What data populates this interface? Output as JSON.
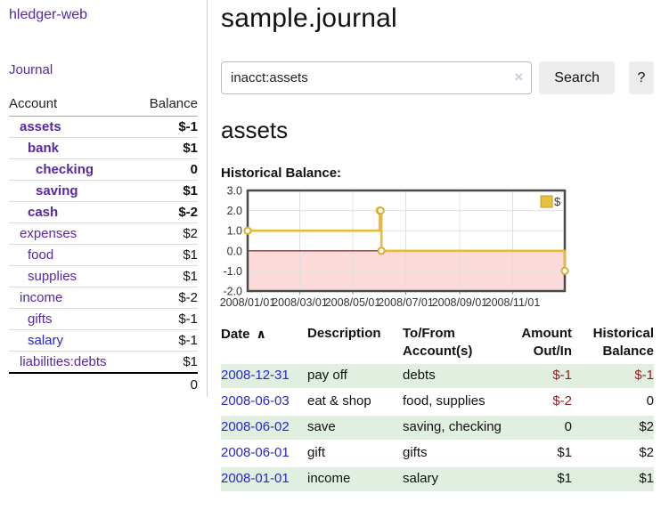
{
  "app": {
    "brand": "hledger-web",
    "nav_journal": "Journal"
  },
  "sidebar": {
    "accounts_table": {
      "col_account": "Account",
      "col_balance": "Balance",
      "rows": [
        {
          "name": "assets",
          "balance": "$-1",
          "level": 1,
          "matched": true,
          "balance_style": "neg-strong",
          "link_color": "purple"
        },
        {
          "name": "bank",
          "balance": "$1",
          "level": 2,
          "matched": true,
          "balance_style": "pos",
          "link_color": "purple"
        },
        {
          "name": "checking",
          "balance": "0",
          "level": 3,
          "matched": true,
          "balance_style": "pos",
          "link_color": "purple"
        },
        {
          "name": "saving",
          "balance": "$1",
          "level": 3,
          "matched": true,
          "balance_style": "pos",
          "link_color": "purple"
        },
        {
          "name": "cash",
          "balance": "$-2",
          "level": 2,
          "matched": true,
          "balance_style": "neg-strong",
          "link_color": "purple"
        },
        {
          "name": "expenses",
          "balance": "$2",
          "level": 1,
          "matched": false,
          "balance_style": "pos",
          "link_color": "purple"
        },
        {
          "name": "food",
          "balance": "$1",
          "level": 2,
          "matched": false,
          "balance_style": "pos",
          "link_color": "purple"
        },
        {
          "name": "supplies",
          "balance": "$1",
          "level": 2,
          "matched": false,
          "balance_style": "pos",
          "link_color": "purple"
        },
        {
          "name": "income",
          "balance": "$-2",
          "level": 1,
          "matched": false,
          "balance_style": "neg-muted",
          "link_color": "purple"
        },
        {
          "name": "gifts",
          "balance": "$-1",
          "level": 2,
          "matched": false,
          "balance_style": "neg-muted",
          "link_color": "purple"
        },
        {
          "name": "salary",
          "balance": "$-1",
          "level": 2,
          "matched": false,
          "balance_style": "neg-muted",
          "link_color": "blue"
        },
        {
          "name": "liabilities:debts",
          "balance": "$1",
          "level": 1,
          "matched": false,
          "balance_style": "pos",
          "link_color": "purple"
        }
      ],
      "total": "0"
    }
  },
  "main": {
    "title": "sample.journal",
    "search": {
      "value": "inacct:assets",
      "search_button": "Search",
      "help_button": "?"
    },
    "account_heading": "assets",
    "chart_title": "Historical Balance:"
  },
  "icons": {
    "clear": "×",
    "sort_asc": "∧"
  },
  "colors": {
    "accent_purple": "#5727a3",
    "link_blue": "#2727d4",
    "negative_strong": "#991717",
    "negative_muted": "#b36a6a",
    "negative_cell": "#8f1d1d",
    "row_green": "#e0efe0",
    "line_gold": "#e6ba3c",
    "marker_stroke": "#ddad2e",
    "legend_fill": "#e9c03f",
    "legend_border": "#c49a28",
    "negative_region": "#fcdada",
    "zero_line": "#8b0000",
    "plot_border": "#4a4a4a",
    "grid": "#e0e0e0"
  },
  "chart_data": {
    "type": "line",
    "title": "Historical Balance:",
    "step": true,
    "ylim": [
      -2,
      3
    ],
    "y_ticks": [
      "3.0",
      "2.0",
      "1.0",
      "0.0",
      "-1.0",
      "-2.0"
    ],
    "y_tick_values": [
      3,
      2,
      1,
      0,
      -1,
      -2
    ],
    "x_ticks": [
      {
        "label": "2008/01/01",
        "x": 0.0
      },
      {
        "label": "2008/03/01",
        "x": 0.1644
      },
      {
        "label": "2008/05/01",
        "x": 0.3315
      },
      {
        "label": "2008/07/01",
        "x": 0.4986
      },
      {
        "label": "2008/09/01",
        "x": 0.6685
      },
      {
        "label": "2008/11/01",
        "x": 0.8356
      }
    ],
    "series": [
      {
        "name": "$",
        "points": [
          {
            "date": "2008-01-01",
            "x": 0.0,
            "y": 1
          },
          {
            "date": "2008-06-01",
            "x": 0.4164,
            "y": 2
          },
          {
            "date": "2008-06-02",
            "x": 0.4192,
            "y": 2
          },
          {
            "date": "2008-06-03",
            "x": 0.4219,
            "y": 0
          },
          {
            "date": "2008-12-31",
            "x": 1.0,
            "y": -1
          }
        ]
      }
    ],
    "legend": {
      "label": "$",
      "position": "top-right"
    },
    "grid": true
  },
  "register": {
    "headers": {
      "date": {
        "line1": "Date",
        "line2": ""
      },
      "description": {
        "line1": "Description",
        "line2": ""
      },
      "accounts": {
        "line1": "To/From",
        "line2": "Account(s)"
      },
      "amount": {
        "line1": "Amount",
        "line2": "Out/In"
      },
      "balance": {
        "line1": "Historical",
        "line2": "Balance"
      }
    },
    "rows": [
      {
        "date": "2008-12-31",
        "description": "pay off",
        "accounts": "debts",
        "amount": "$-1",
        "balance": "$-1",
        "amount_neg": true,
        "balance_neg": true,
        "shade": true
      },
      {
        "date": "2008-06-03",
        "description": "eat & shop",
        "accounts": "food, supplies",
        "amount": "$-2",
        "balance": "0",
        "amount_neg": true,
        "balance_neg": false,
        "shade": false
      },
      {
        "date": "2008-06-02",
        "description": "save",
        "accounts": "saving, checking",
        "amount": "0",
        "balance": "$2",
        "amount_neg": false,
        "balance_neg": false,
        "shade": true
      },
      {
        "date": "2008-06-01",
        "description": "gift",
        "accounts": "gifts",
        "amount": "$1",
        "balance": "$2",
        "amount_neg": false,
        "balance_neg": false,
        "shade": false
      },
      {
        "date": "2008-01-01",
        "description": "income",
        "accounts": "salary",
        "amount": "$1",
        "balance": "$1",
        "amount_neg": false,
        "balance_neg": false,
        "shade": true
      }
    ]
  }
}
